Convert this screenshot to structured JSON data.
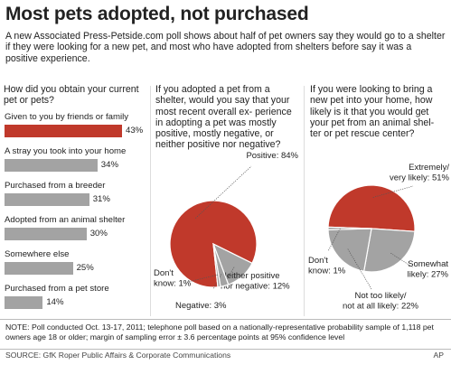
{
  "title": "Most pets adopted, not purchased",
  "subtitle": "A new Associated Press-Petside.com poll shows about half of pet owners say they would go to a shelter if they were looking for a new pet, and most who have adopted from shelters before say it was a positive experience.",
  "colors": {
    "highlight": "#c0392b",
    "neutral": "#a3a3a3",
    "pie_edge": "#ffffff"
  },
  "chart_data": [
    {
      "type": "bar",
      "orientation": "horizontal",
      "title": "How did you obtain your current pet or pets?",
      "categories": [
        "Given to you by friends or family",
        "A stray you took into your home",
        "Purchased from a breeder",
        "Adopted from an animal shelter",
        "Somewhere else",
        "Purchased from a pet store"
      ],
      "values": [
        43,
        34,
        31,
        30,
        25,
        14
      ],
      "value_labels": [
        "43%",
        "34%",
        "31%",
        "30%",
        "25%",
        "14%"
      ],
      "highlight_index": 0,
      "xlim": [
        0,
        43
      ]
    },
    {
      "type": "pie",
      "title": "If you adopted a pet from a shelter, would you say that your most recent overall ex- perience in adopting a pet was mostly positive, mostly negative, or neither positive nor negative?",
      "slices": [
        {
          "name": "Positive",
          "value": 84,
          "label": "Positive: 84%"
        },
        {
          "name": "Neither positive nor negative",
          "value": 12,
          "label_lines": [
            "Neither positive",
            "nor negative: 12%"
          ]
        },
        {
          "name": "Negative",
          "value": 3,
          "label": "Negative: 3%"
        },
        {
          "name": "Don't know",
          "value": 1,
          "label_lines": [
            "Don't",
            "know: 1%"
          ]
        }
      ]
    },
    {
      "type": "pie",
      "title": "If you were looking to bring a new pet into your home, how likely is it that you would get your pet from an animal shel- ter or pet rescue center?",
      "slices": [
        {
          "name": "Extremely/very likely",
          "value": 51,
          "label_lines": [
            "Extremely/",
            "very likely: 51%"
          ]
        },
        {
          "name": "Somewhat likely",
          "value": 27,
          "label_lines": [
            "Somewhat",
            "likely: 27%"
          ]
        },
        {
          "name": "Not too likely/not at all likely",
          "value": 22,
          "label_lines": [
            "Not too likely/",
            "not at all likely: 22%"
          ]
        },
        {
          "name": "Don't know",
          "value": 1,
          "label_lines": [
            "Don't",
            "know: 1%"
          ]
        }
      ]
    }
  ],
  "note": "NOTE: Poll conducted Oct. 13-17, 2011; telephone poll based on a nationally-representative probability sample of 1,118 pet owners age 18 or older; margin of sampling error ± 3.6 percentage points at 95% confidence level",
  "source": "SOURCE: GfK Roper Public Affairs & Corporate Communications",
  "agency": "AP"
}
